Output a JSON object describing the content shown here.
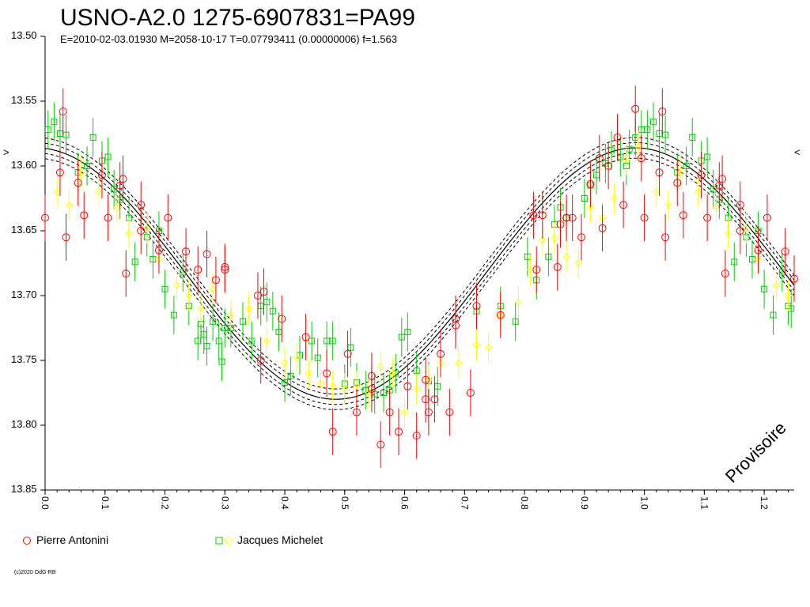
{
  "chart_data": {
    "type": "scatter",
    "title": "USNO-A2.0 1275-6907831=PA99",
    "subtitle": "E=2010-02-03.01930    M=2058-10-17    T=0.07793411 (0.00000006)    f=1.563",
    "xlabel": "",
    "ylabel": "",
    "xlim": [
      0.0,
      1.25
    ],
    "ylim": [
      13.85,
      13.5
    ],
    "y_inverted": true,
    "grid": false,
    "legend_placement": "bottom",
    "y_ticks": [
      "13.50",
      "13.55",
      "13.60",
      "13.65",
      "13.70",
      "13.75",
      "13.80",
      "13.85"
    ],
    "x_ticks": [
      "0.0",
      "0.1",
      "0.2",
      "0.3",
      "0.4",
      "0.5",
      "0.6",
      "0.7",
      "0.8",
      "0.9",
      "1.0",
      "1.1",
      "1.2"
    ],
    "fit_curve": {
      "mean": 13.683,
      "amplitude": 0.097,
      "max_brightness_phase": 0.985,
      "band": 0.004
    },
    "series": [
      {
        "name": "Pierre Antonini",
        "marker": "circle",
        "color": "#ff0000",
        "points": [
          [
            0.0,
            13.64
          ],
          [
            0.025,
            13.605
          ],
          [
            0.03,
            13.558
          ],
          [
            0.035,
            13.655
          ],
          [
            0.055,
            13.613
          ],
          [
            0.065,
            13.638
          ],
          [
            0.095,
            13.607
          ],
          [
            0.105,
            13.64
          ],
          [
            0.125,
            13.615
          ],
          [
            0.13,
            13.61
          ],
          [
            0.135,
            13.683
          ],
          [
            0.16,
            13.63
          ],
          [
            0.16,
            13.65
          ],
          [
            0.19,
            13.665
          ],
          [
            0.205,
            13.64
          ],
          [
            0.235,
            13.666
          ],
          [
            0.255,
            13.68
          ],
          [
            0.27,
            13.668
          ],
          [
            0.285,
            13.688
          ],
          [
            0.3,
            13.68
          ],
          [
            0.3,
            13.678
          ],
          [
            0.355,
            13.7
          ],
          [
            0.36,
            13.75
          ],
          [
            0.365,
            13.697
          ],
          [
            0.395,
            13.718
          ],
          [
            0.435,
            13.732
          ],
          [
            0.47,
            13.76
          ],
          [
            0.48,
            13.805
          ],
          [
            0.505,
            13.745
          ],
          [
            0.52,
            13.79
          ],
          [
            0.545,
            13.772
          ],
          [
            0.545,
            13.762
          ],
          [
            0.56,
            13.815
          ],
          [
            0.575,
            13.79
          ],
          [
            0.59,
            13.805
          ],
          [
            0.605,
            13.77
          ],
          [
            0.62,
            13.808
          ],
          [
            0.635,
            13.78
          ],
          [
            0.635,
            13.765
          ],
          [
            0.64,
            13.79
          ],
          [
            0.65,
            13.78
          ],
          [
            0.66,
            13.745
          ],
          [
            0.675,
            13.79
          ],
          [
            0.685,
            13.723
          ],
          [
            0.685,
            13.718
          ],
          [
            0.71,
            13.775
          ],
          [
            0.72,
            13.708
          ],
          [
            0.76,
            13.715
          ],
          [
            0.815,
            13.638
          ],
          [
            0.82,
            13.68
          ],
          [
            0.83,
            13.638
          ],
          [
            0.855,
            13.678
          ],
          [
            0.86,
            13.645
          ],
          [
            0.87,
            13.64
          ],
          [
            0.88,
            13.64
          ],
          [
            0.895,
            13.655
          ],
          [
            0.91,
            13.614
          ],
          [
            0.925,
            13.594
          ],
          [
            0.93,
            13.648
          ],
          [
            0.94,
            13.6
          ],
          [
            0.955,
            13.578
          ],
          [
            0.965,
            13.63
          ],
          [
            0.985,
            13.556
          ],
          [
            0.995,
            13.594
          ],
          [
            1.0,
            13.64
          ],
          [
            1.025,
            13.605
          ],
          [
            1.03,
            13.558
          ],
          [
            1.035,
            13.655
          ],
          [
            1.055,
            13.613
          ],
          [
            1.065,
            13.638
          ],
          [
            1.095,
            13.607
          ],
          [
            1.105,
            13.64
          ],
          [
            1.125,
            13.615
          ],
          [
            1.13,
            13.61
          ],
          [
            1.135,
            13.683
          ],
          [
            1.16,
            13.63
          ],
          [
            1.16,
            13.65
          ],
          [
            1.19,
            13.665
          ],
          [
            1.205,
            13.64
          ],
          [
            1.235,
            13.666
          ],
          [
            1.25,
            13.687
          ]
        ]
      },
      {
        "name": "Jacques Michelet",
        "marker": "square+diamond",
        "color": "#00cc00",
        "diamond_color": "#ffff00",
        "points": [
          [
            0.005,
            13.572
          ],
          [
            0.015,
            13.566
          ],
          [
            0.025,
            13.575
          ],
          [
            0.035,
            13.576
          ],
          [
            0.055,
            13.605
          ],
          [
            0.07,
            13.6
          ],
          [
            0.08,
            13.578
          ],
          [
            0.095,
            13.596
          ],
          [
            0.105,
            13.593
          ],
          [
            0.115,
            13.618
          ],
          [
            0.125,
            13.626
          ],
          [
            0.14,
            13.64
          ],
          [
            0.15,
            13.674
          ],
          [
            0.17,
            13.655
          ],
          [
            0.18,
            13.672
          ],
          [
            0.19,
            13.65
          ],
          [
            0.2,
            13.695
          ],
          [
            0.215,
            13.715
          ],
          [
            0.23,
            13.682
          ],
          [
            0.24,
            13.708
          ],
          [
            0.255,
            13.735
          ],
          [
            0.26,
            13.722
          ],
          [
            0.265,
            13.73
          ],
          [
            0.27,
            13.739
          ],
          [
            0.28,
            13.72
          ],
          [
            0.29,
            13.735
          ],
          [
            0.295,
            13.751
          ],
          [
            0.3,
            13.725
          ],
          [
            0.31,
            13.725
          ],
          [
            0.33,
            13.72
          ],
          [
            0.345,
            13.735
          ],
          [
            0.36,
            13.708
          ],
          [
            0.37,
            13.705
          ],
          [
            0.38,
            13.712
          ],
          [
            0.39,
            13.728
          ],
          [
            0.4,
            13.767
          ],
          [
            0.41,
            13.762
          ],
          [
            0.425,
            13.746
          ],
          [
            0.445,
            13.735
          ],
          [
            0.455,
            13.748
          ],
          [
            0.47,
            13.735
          ],
          [
            0.48,
            13.735
          ],
          [
            0.5,
            13.768
          ],
          [
            0.51,
            13.74
          ],
          [
            0.52,
            13.767
          ],
          [
            0.535,
            13.773
          ],
          [
            0.55,
            13.776
          ],
          [
            0.565,
            13.775
          ],
          [
            0.575,
            13.773
          ],
          [
            0.585,
            13.76
          ],
          [
            0.595,
            13.732
          ],
          [
            0.605,
            13.728
          ],
          [
            0.62,
            13.758
          ],
          [
            0.64,
            13.766
          ],
          [
            0.655,
            13.77
          ],
          [
            0.72,
            13.712
          ],
          [
            0.76,
            13.708
          ],
          [
            0.785,
            13.72
          ],
          [
            0.805,
            13.67
          ],
          [
            0.82,
            13.688
          ],
          [
            0.84,
            13.67
          ],
          [
            0.85,
            13.645
          ],
          [
            0.86,
            13.632
          ],
          [
            0.87,
            13.64
          ],
          [
            0.9,
            13.625
          ],
          [
            0.91,
            13.615
          ],
          [
            0.92,
            13.607
          ],
          [
            0.935,
            13.598
          ],
          [
            0.945,
            13.588
          ],
          [
            0.96,
            13.593
          ],
          [
            0.97,
            13.6
          ],
          [
            0.975,
            13.587
          ],
          [
            0.985,
            13.578
          ],
          [
            0.995,
            13.572
          ],
          [
            1.005,
            13.572
          ],
          [
            1.015,
            13.566
          ],
          [
            1.025,
            13.575
          ],
          [
            1.035,
            13.576
          ],
          [
            1.055,
            13.605
          ],
          [
            1.07,
            13.6
          ],
          [
            1.08,
            13.578
          ],
          [
            1.095,
            13.596
          ],
          [
            1.105,
            13.593
          ],
          [
            1.115,
            13.618
          ],
          [
            1.125,
            13.626
          ],
          [
            1.14,
            13.64
          ],
          [
            1.15,
            13.674
          ],
          [
            1.17,
            13.655
          ],
          [
            1.18,
            13.672
          ],
          [
            1.19,
            13.65
          ],
          [
            1.2,
            13.695
          ],
          [
            1.215,
            13.715
          ],
          [
            1.23,
            13.682
          ],
          [
            1.24,
            13.708
          ],
          [
            1.245,
            13.71
          ]
        ],
        "diamond_points": [
          [
            0.02,
            13.62
          ],
          [
            0.04,
            13.63
          ],
          [
            0.06,
            13.605
          ],
          [
            0.09,
            13.62
          ],
          [
            0.12,
            13.632
          ],
          [
            0.14,
            13.652
          ],
          [
            0.17,
            13.648
          ],
          [
            0.19,
            13.672
          ],
          [
            0.22,
            13.692
          ],
          [
            0.24,
            13.7
          ],
          [
            0.26,
            13.71
          ],
          [
            0.28,
            13.695
          ],
          [
            0.31,
            13.715
          ],
          [
            0.34,
            13.71
          ],
          [
            0.37,
            13.735
          ],
          [
            0.4,
            13.752
          ],
          [
            0.42,
            13.748
          ],
          [
            0.44,
            13.76
          ],
          [
            0.46,
            13.768
          ],
          [
            0.48,
            13.77
          ],
          [
            0.5,
            13.772
          ],
          [
            0.52,
            13.77
          ],
          [
            0.54,
            13.775
          ],
          [
            0.56,
            13.755
          ],
          [
            0.58,
            13.76
          ],
          [
            0.6,
            13.79
          ],
          [
            0.62,
            13.772
          ],
          [
            0.64,
            13.765
          ],
          [
            0.66,
            13.752
          ],
          [
            0.69,
            13.752
          ],
          [
            0.72,
            13.738
          ],
          [
            0.74,
            13.74
          ],
          [
            0.76,
            13.715
          ],
          [
            0.79,
            13.705
          ],
          [
            0.81,
            13.68
          ],
          [
            0.83,
            13.657
          ],
          [
            0.85,
            13.656
          ],
          [
            0.87,
            13.67
          ],
          [
            0.89,
            13.675
          ],
          [
            0.91,
            13.632
          ],
          [
            0.93,
            13.64
          ],
          [
            0.95,
            13.625
          ],
          [
            0.97,
            13.595
          ],
          [
            0.99,
            13.585
          ],
          [
            1.02,
            13.62
          ],
          [
            1.04,
            13.63
          ],
          [
            1.06,
            13.605
          ],
          [
            1.09,
            13.62
          ],
          [
            1.12,
            13.632
          ],
          [
            1.14,
            13.652
          ],
          [
            1.17,
            13.648
          ],
          [
            1.19,
            13.672
          ],
          [
            1.22,
            13.692
          ],
          [
            1.24,
            13.7
          ]
        ]
      }
    ],
    "legend": [
      {
        "name": "Pierre Antonini",
        "symbols": [
          "circle"
        ]
      },
      {
        "name": "Jacques Michelet",
        "symbols": [
          "square",
          "diamond"
        ]
      }
    ],
    "annotations": [
      "Provisoire"
    ],
    "side_markers": [
      ">",
      "<"
    ],
    "copyright": "(c)2020 OdG-RB"
  }
}
